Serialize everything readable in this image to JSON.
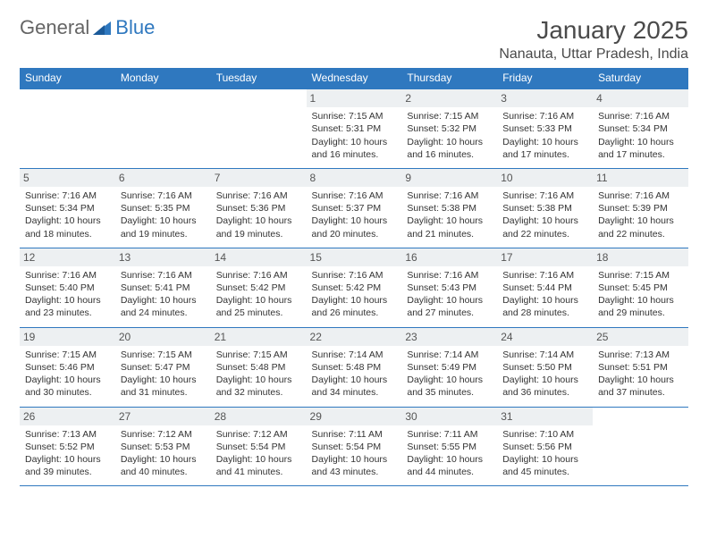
{
  "brand": {
    "part1": "General",
    "part2": "Blue"
  },
  "title": "January 2025",
  "location": "Nanauta, Uttar Pradesh, India",
  "colors": {
    "accent": "#2f78bf",
    "band": "#edf0f2",
    "text": "#333333",
    "heading": "#4a4a4a"
  },
  "dayNames": [
    "Sunday",
    "Monday",
    "Tuesday",
    "Wednesday",
    "Thursday",
    "Friday",
    "Saturday"
  ],
  "weeks": [
    [
      null,
      null,
      null,
      {
        "n": "1",
        "sunrise": "Sunrise: 7:15 AM",
        "sunset": "Sunset: 5:31 PM",
        "day1": "Daylight: 10 hours",
        "day2": "and 16 minutes."
      },
      {
        "n": "2",
        "sunrise": "Sunrise: 7:15 AM",
        "sunset": "Sunset: 5:32 PM",
        "day1": "Daylight: 10 hours",
        "day2": "and 16 minutes."
      },
      {
        "n": "3",
        "sunrise": "Sunrise: 7:16 AM",
        "sunset": "Sunset: 5:33 PM",
        "day1": "Daylight: 10 hours",
        "day2": "and 17 minutes."
      },
      {
        "n": "4",
        "sunrise": "Sunrise: 7:16 AM",
        "sunset": "Sunset: 5:34 PM",
        "day1": "Daylight: 10 hours",
        "day2": "and 17 minutes."
      }
    ],
    [
      {
        "n": "5",
        "sunrise": "Sunrise: 7:16 AM",
        "sunset": "Sunset: 5:34 PM",
        "day1": "Daylight: 10 hours",
        "day2": "and 18 minutes."
      },
      {
        "n": "6",
        "sunrise": "Sunrise: 7:16 AM",
        "sunset": "Sunset: 5:35 PM",
        "day1": "Daylight: 10 hours",
        "day2": "and 19 minutes."
      },
      {
        "n": "7",
        "sunrise": "Sunrise: 7:16 AM",
        "sunset": "Sunset: 5:36 PM",
        "day1": "Daylight: 10 hours",
        "day2": "and 19 minutes."
      },
      {
        "n": "8",
        "sunrise": "Sunrise: 7:16 AM",
        "sunset": "Sunset: 5:37 PM",
        "day1": "Daylight: 10 hours",
        "day2": "and 20 minutes."
      },
      {
        "n": "9",
        "sunrise": "Sunrise: 7:16 AM",
        "sunset": "Sunset: 5:38 PM",
        "day1": "Daylight: 10 hours",
        "day2": "and 21 minutes."
      },
      {
        "n": "10",
        "sunrise": "Sunrise: 7:16 AM",
        "sunset": "Sunset: 5:38 PM",
        "day1": "Daylight: 10 hours",
        "day2": "and 22 minutes."
      },
      {
        "n": "11",
        "sunrise": "Sunrise: 7:16 AM",
        "sunset": "Sunset: 5:39 PM",
        "day1": "Daylight: 10 hours",
        "day2": "and 22 minutes."
      }
    ],
    [
      {
        "n": "12",
        "sunrise": "Sunrise: 7:16 AM",
        "sunset": "Sunset: 5:40 PM",
        "day1": "Daylight: 10 hours",
        "day2": "and 23 minutes."
      },
      {
        "n": "13",
        "sunrise": "Sunrise: 7:16 AM",
        "sunset": "Sunset: 5:41 PM",
        "day1": "Daylight: 10 hours",
        "day2": "and 24 minutes."
      },
      {
        "n": "14",
        "sunrise": "Sunrise: 7:16 AM",
        "sunset": "Sunset: 5:42 PM",
        "day1": "Daylight: 10 hours",
        "day2": "and 25 minutes."
      },
      {
        "n": "15",
        "sunrise": "Sunrise: 7:16 AM",
        "sunset": "Sunset: 5:42 PM",
        "day1": "Daylight: 10 hours",
        "day2": "and 26 minutes."
      },
      {
        "n": "16",
        "sunrise": "Sunrise: 7:16 AM",
        "sunset": "Sunset: 5:43 PM",
        "day1": "Daylight: 10 hours",
        "day2": "and 27 minutes."
      },
      {
        "n": "17",
        "sunrise": "Sunrise: 7:16 AM",
        "sunset": "Sunset: 5:44 PM",
        "day1": "Daylight: 10 hours",
        "day2": "and 28 minutes."
      },
      {
        "n": "18",
        "sunrise": "Sunrise: 7:15 AM",
        "sunset": "Sunset: 5:45 PM",
        "day1": "Daylight: 10 hours",
        "day2": "and 29 minutes."
      }
    ],
    [
      {
        "n": "19",
        "sunrise": "Sunrise: 7:15 AM",
        "sunset": "Sunset: 5:46 PM",
        "day1": "Daylight: 10 hours",
        "day2": "and 30 minutes."
      },
      {
        "n": "20",
        "sunrise": "Sunrise: 7:15 AM",
        "sunset": "Sunset: 5:47 PM",
        "day1": "Daylight: 10 hours",
        "day2": "and 31 minutes."
      },
      {
        "n": "21",
        "sunrise": "Sunrise: 7:15 AM",
        "sunset": "Sunset: 5:48 PM",
        "day1": "Daylight: 10 hours",
        "day2": "and 32 minutes."
      },
      {
        "n": "22",
        "sunrise": "Sunrise: 7:14 AM",
        "sunset": "Sunset: 5:48 PM",
        "day1": "Daylight: 10 hours",
        "day2": "and 34 minutes."
      },
      {
        "n": "23",
        "sunrise": "Sunrise: 7:14 AM",
        "sunset": "Sunset: 5:49 PM",
        "day1": "Daylight: 10 hours",
        "day2": "and 35 minutes."
      },
      {
        "n": "24",
        "sunrise": "Sunrise: 7:14 AM",
        "sunset": "Sunset: 5:50 PM",
        "day1": "Daylight: 10 hours",
        "day2": "and 36 minutes."
      },
      {
        "n": "25",
        "sunrise": "Sunrise: 7:13 AM",
        "sunset": "Sunset: 5:51 PM",
        "day1": "Daylight: 10 hours",
        "day2": "and 37 minutes."
      }
    ],
    [
      {
        "n": "26",
        "sunrise": "Sunrise: 7:13 AM",
        "sunset": "Sunset: 5:52 PM",
        "day1": "Daylight: 10 hours",
        "day2": "and 39 minutes."
      },
      {
        "n": "27",
        "sunrise": "Sunrise: 7:12 AM",
        "sunset": "Sunset: 5:53 PM",
        "day1": "Daylight: 10 hours",
        "day2": "and 40 minutes."
      },
      {
        "n": "28",
        "sunrise": "Sunrise: 7:12 AM",
        "sunset": "Sunset: 5:54 PM",
        "day1": "Daylight: 10 hours",
        "day2": "and 41 minutes."
      },
      {
        "n": "29",
        "sunrise": "Sunrise: 7:11 AM",
        "sunset": "Sunset: 5:54 PM",
        "day1": "Daylight: 10 hours",
        "day2": "and 43 minutes."
      },
      {
        "n": "30",
        "sunrise": "Sunrise: 7:11 AM",
        "sunset": "Sunset: 5:55 PM",
        "day1": "Daylight: 10 hours",
        "day2": "and 44 minutes."
      },
      {
        "n": "31",
        "sunrise": "Sunrise: 7:10 AM",
        "sunset": "Sunset: 5:56 PM",
        "day1": "Daylight: 10 hours",
        "day2": "and 45 minutes."
      },
      null
    ]
  ]
}
